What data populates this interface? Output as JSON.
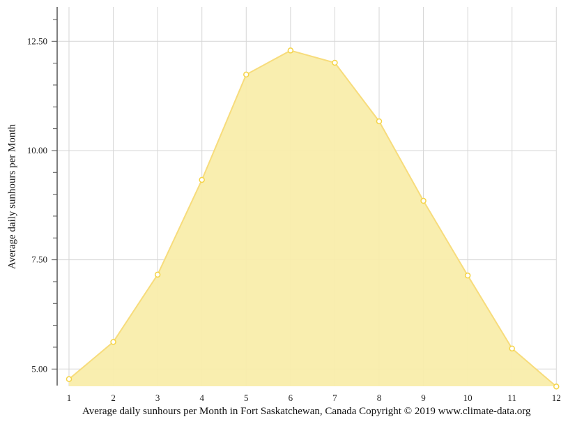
{
  "chart_data": {
    "type": "area",
    "title": "",
    "caption": "Average daily sunhours per Month in Fort Saskatchewan, Canada Copyright © 2019 www.climate-data.org",
    "xlabel": "",
    "ylabel": "Average daily sunhours per Month",
    "categories": [
      "1",
      "2",
      "3",
      "4",
      "5",
      "6",
      "7",
      "8",
      "9",
      "10",
      "11",
      "12"
    ],
    "series": [
      {
        "name": "Average daily sunhours",
        "values": [
          4.77,
          5.62,
          7.16,
          9.33,
          11.74,
          12.29,
          12.01,
          10.67,
          8.85,
          7.14,
          5.47,
          4.6
        ]
      }
    ],
    "yticks": [
      "5.00",
      "7.50",
      "10.00",
      "12.50"
    ],
    "ytick_values": [
      5.0,
      7.5,
      10.0,
      12.5
    ],
    "ylim": [
      4.6,
      13.25
    ],
    "grid": true,
    "legend": "none",
    "colors": {
      "fill": "#f9edab",
      "line": "#f7dc7c",
      "marker_stroke": "#f5d447",
      "marker_fill": "#ffffff",
      "grid": "#d6d6d6",
      "axis": "#555555"
    }
  }
}
